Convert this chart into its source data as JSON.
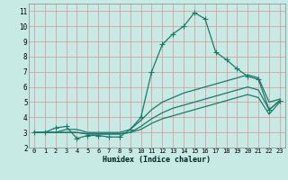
{
  "bg_color": "#c8eae5",
  "grid_color": "#d8a0a0",
  "line_color": "#1a7a6a",
  "xlabel": "Humidex (Indice chaleur)",
  "ylim": [
    2,
    11.5
  ],
  "xlim": [
    -0.5,
    23.5
  ],
  "yticks": [
    2,
    3,
    4,
    5,
    6,
    7,
    8,
    9,
    10,
    11
  ],
  "xticks": [
    0,
    1,
    2,
    3,
    4,
    5,
    6,
    7,
    8,
    9,
    10,
    11,
    12,
    13,
    14,
    15,
    16,
    17,
    18,
    19,
    20,
    21,
    22,
    23
  ],
  "line1_x": [
    0,
    1,
    2,
    3,
    4,
    5,
    6,
    7,
    8,
    9,
    10,
    11,
    12,
    13,
    14,
    15,
    16,
    17,
    18,
    19,
    20,
    21,
    22,
    23
  ],
  "line1_y": [
    3.0,
    3.0,
    3.3,
    3.4,
    2.6,
    2.8,
    2.8,
    2.7,
    2.7,
    3.2,
    4.0,
    7.0,
    8.8,
    9.5,
    10.0,
    10.9,
    10.5,
    8.3,
    7.8,
    7.2,
    6.7,
    6.5,
    4.5,
    5.1
  ],
  "line2_x": [
    0,
    1,
    2,
    3,
    4,
    5,
    6,
    7,
    8,
    9,
    10,
    11,
    12,
    13,
    14,
    15,
    16,
    17,
    18,
    19,
    20,
    21,
    22,
    23
  ],
  "line2_y": [
    3.0,
    3.0,
    3.0,
    3.2,
    3.2,
    3.0,
    3.0,
    3.0,
    3.0,
    3.2,
    3.8,
    4.5,
    5.0,
    5.3,
    5.6,
    5.8,
    6.0,
    6.2,
    6.4,
    6.6,
    6.8,
    6.6,
    5.0,
    5.2
  ],
  "line3_x": [
    0,
    1,
    2,
    3,
    4,
    5,
    6,
    7,
    8,
    9,
    10,
    11,
    12,
    13,
    14,
    15,
    16,
    17,
    18,
    19,
    20,
    21,
    22,
    23
  ],
  "line3_y": [
    3.0,
    3.0,
    3.0,
    3.0,
    3.0,
    2.9,
    2.9,
    2.9,
    2.9,
    3.0,
    3.4,
    3.9,
    4.3,
    4.6,
    4.8,
    5.0,
    5.2,
    5.4,
    5.6,
    5.8,
    6.0,
    5.8,
    4.5,
    5.1
  ],
  "line4_x": [
    0,
    1,
    2,
    3,
    4,
    5,
    6,
    7,
    8,
    9,
    10,
    11,
    12,
    13,
    14,
    15,
    16,
    17,
    18,
    19,
    20,
    21,
    22,
    23
  ],
  "line4_y": [
    3.0,
    3.0,
    3.0,
    3.0,
    3.0,
    2.9,
    2.9,
    2.9,
    2.9,
    3.0,
    3.2,
    3.6,
    3.9,
    4.1,
    4.3,
    4.5,
    4.7,
    4.9,
    5.1,
    5.3,
    5.5,
    5.3,
    4.2,
    5.0
  ]
}
